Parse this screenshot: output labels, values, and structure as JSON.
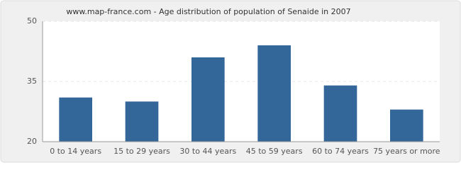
{
  "chart_data": {
    "type": "bar",
    "title": "www.map-france.com - Age distribution of population of Senaide in 2007",
    "categories": [
      "0 to 14 years",
      "15 to 29 years",
      "30 to 44 years",
      "45 to 59 years",
      "60 to 74 years",
      "75 years or more"
    ],
    "values": [
      31,
      30,
      41,
      44,
      34,
      28
    ],
    "color": "#336699",
    "ylim": [
      20,
      50
    ],
    "yticks": [
      20,
      35,
      50
    ],
    "grid": true
  }
}
